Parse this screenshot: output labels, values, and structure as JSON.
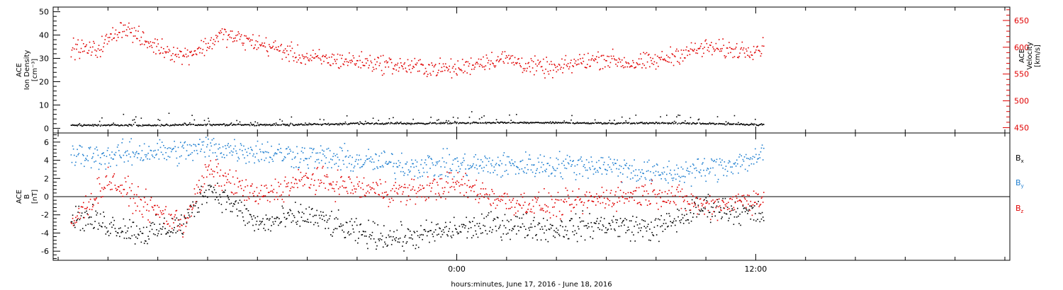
{
  "chart_data": [
    {
      "type": "scatter",
      "panel": "top",
      "left_axis": {
        "label_lines": [
          "ACE",
          "Ion Density",
          "[cm⁻³]"
        ],
        "ylim": [
          -2,
          52
        ],
        "ticks": [
          0,
          10,
          20,
          30,
          40,
          50
        ],
        "tick_labels": [
          "0",
          "10",
          "20",
          "30",
          "40",
          "50"
        ],
        "color": "#000000"
      },
      "right_axis": {
        "label_lines": [
          "ACE",
          "Velocity",
          "[km/s]"
        ],
        "ylim": [
          440,
          675
        ],
        "ticks": [
          450,
          500,
          550,
          600,
          650
        ],
        "tick_labels": [
          "450",
          "500",
          "550",
          "600",
          "650"
        ],
        "color": "#e00000"
      },
      "series": [
        {
          "id": "density",
          "axis": "left",
          "color": "#000000",
          "x": [
            -15.5,
            -14,
            -12,
            -10,
            -8,
            -6,
            -4,
            -2,
            0,
            2,
            4,
            6,
            8,
            10,
            12.3
          ],
          "y": [
            1.5,
            1.6,
            1.5,
            1.8,
            1.7,
            1.8,
            2.3,
            2.3,
            2.5,
            2.6,
            2.6,
            2.4,
            2.5,
            2.2,
            1.8
          ]
        },
        {
          "id": "velocity",
          "axis": "right",
          "color": "#e00000",
          "x": [
            -15.5,
            -14.5,
            -13.4,
            -12.5,
            -11,
            -10,
            -9.5,
            -8,
            -7,
            -6,
            -4,
            -2,
            0,
            1,
            2,
            3,
            4,
            5,
            6,
            7,
            8,
            9,
            10,
            11,
            12.3
          ],
          "y": [
            600,
            595,
            640,
            610,
            585,
            605,
            625,
            608,
            595,
            580,
            575,
            565,
            560,
            575,
            580,
            565,
            560,
            575,
            580,
            570,
            575,
            590,
            600,
            595,
            600
          ]
        }
      ]
    },
    {
      "type": "scatter",
      "panel": "bottom",
      "left_axis": {
        "label_lines": [
          "ACE",
          "B",
          "[nT]"
        ],
        "ylim": [
          -7,
          7
        ],
        "ticks": [
          -6,
          -4,
          -2,
          0,
          2,
          4,
          6
        ],
        "tick_labels": [
          "-6",
          "-4",
          "-2",
          "0",
          "2",
          "4",
          "6"
        ]
      },
      "zero_line": 0,
      "series": [
        {
          "id": "bx",
          "name": "Bₓ",
          "color": "#000000",
          "x": [
            -15.5,
            -14,
            -12.5,
            -11,
            -10,
            -9.8,
            -8,
            -6,
            -4,
            -2,
            0,
            2,
            4,
            6,
            8,
            10,
            12.3
          ],
          "y": [
            -2,
            -3,
            -4,
            -3,
            1.2,
            0.8,
            -3,
            -2,
            -4,
            -4.5,
            -3.5,
            -3,
            -3.5,
            -3,
            -3.5,
            -1,
            -2
          ]
        },
        {
          "id": "by",
          "name": "Bᵧ",
          "color": "#1f7fd0",
          "x": [
            -15.5,
            -14,
            -12.5,
            -11,
            -10,
            -8,
            -6,
            -4,
            -2,
            0,
            2,
            4,
            6,
            8,
            10,
            12.3
          ],
          "y": [
            4.5,
            4.5,
            5,
            5,
            5.5,
            5,
            4.5,
            4,
            3.5,
            3.5,
            3.5,
            3.5,
            3.5,
            2.5,
            3,
            4.5
          ]
        },
        {
          "id": "bz",
          "name": "B_z",
          "color": "#e00000",
          "x": [
            -15.5,
            -14,
            -12.5,
            -11,
            -10,
            -8,
            -6,
            -4,
            -2,
            0,
            2,
            4,
            6,
            8,
            10,
            12.3
          ],
          "y": [
            -3,
            2,
            -1,
            -3,
            3,
            0,
            2,
            1,
            0.5,
            1.5,
            -0.5,
            -1,
            0,
            0.5,
            -1,
            0
          ]
        }
      ]
    }
  ],
  "legend": {
    "bx": {
      "base": "B",
      "sub": "x",
      "color": "#000000"
    },
    "by": {
      "base": "B",
      "sub": "y",
      "color": "#1f7fd0"
    },
    "bz": {
      "base": "B",
      "sub": "z",
      "color": "#e00000"
    }
  },
  "time_axis": {
    "xlim": [
      -16.2,
      22.2
    ],
    "major_ticks": [
      0,
      12
    ],
    "major_tick_labels": [
      "0:00",
      "12:00"
    ],
    "minor_step": 2
  },
  "footer_text": "hours:minutes, June 17, 2016 - June 18, 2016"
}
